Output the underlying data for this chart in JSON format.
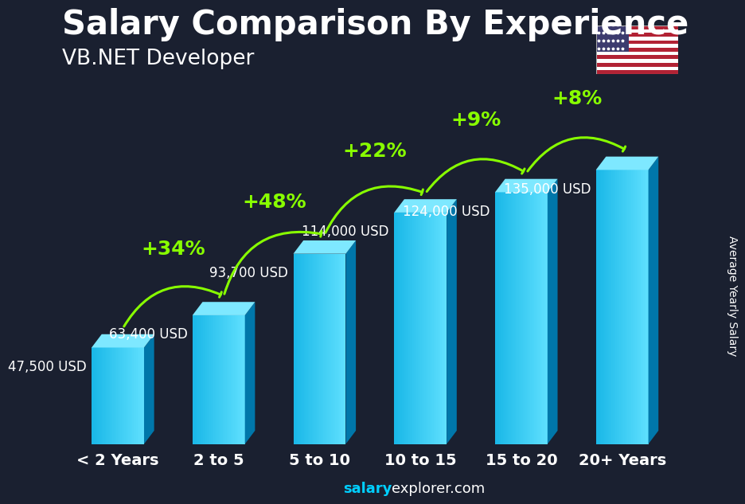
{
  "title": "Salary Comparison By Experience",
  "subtitle": "VB.NET Developer",
  "categories": [
    "< 2 Years",
    "2 to 5",
    "5 to 10",
    "10 to 15",
    "15 to 20",
    "20+ Years"
  ],
  "values": [
    47500,
    63400,
    93700,
    114000,
    124000,
    135000
  ],
  "value_labels": [
    "47,500 USD",
    "63,400 USD",
    "93,700 USD",
    "114,000 USD",
    "124,000 USD",
    "135,000 USD"
  ],
  "pct_labels": [
    "+34%",
    "+48%",
    "+22%",
    "+9%",
    "+8%"
  ],
  "bar_face_color": "#1ab8e8",
  "bar_top_color": "#7ee8ff",
  "bar_side_color": "#0077aa",
  "bg_color": "#1a2030",
  "pct_color": "#88ff00",
  "text_color": "#ffffff",
  "ylabel": "Average Yearly Salary",
  "footer_salary": "salary",
  "footer_rest": "explorer.com",
  "title_fontsize": 30,
  "subtitle_fontsize": 19,
  "value_fontsize": 12,
  "pct_fontsize": 18,
  "tick_fontsize": 14,
  "ylabel_fontsize": 10
}
